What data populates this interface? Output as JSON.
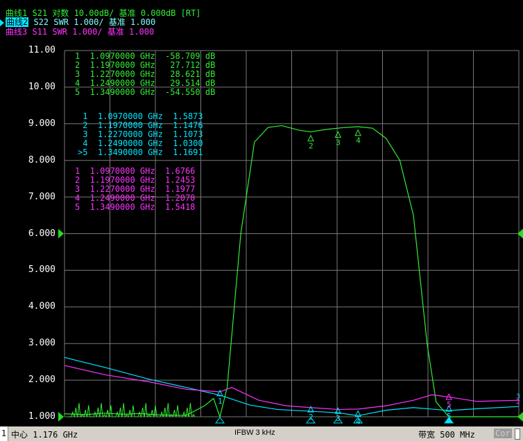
{
  "header": {
    "trace1": {
      "label": "曲线1",
      "text": " S21 对数 10.00dB/ 基准 0.000dB [RT]"
    },
    "trace2": {
      "label": "曲线2",
      "text": " S22 SWR 1.000/ 基准 1.000"
    },
    "trace3": {
      "label": "曲线3",
      "text": " S11 SWR 1.000/ 基准 1.000"
    }
  },
  "y_axis": {
    "labels": [
      "11.00",
      "10.00",
      "9.000",
      "8.000",
      "7.000",
      "6.000",
      "5.000",
      "4.000",
      "3.000",
      "2.000",
      "1.000"
    ]
  },
  "marker_tables": {
    "s21": [
      {
        "id": "1",
        "freq": "1.0970000 GHz",
        "value": "-58.709 dB"
      },
      {
        "id": "2",
        "freq": "1.1970000 GHz",
        "value": " 27.712 dB"
      },
      {
        "id": "3",
        "freq": "1.2270000 GHz",
        "value": " 28.621 dB"
      },
      {
        "id": "4",
        "freq": "1.2490000 GHz",
        "value": " 29.514 dB"
      },
      {
        "id": "5",
        "freq": "1.3490000 GHz",
        "value": "-54.550 dB"
      }
    ],
    "s22": [
      {
        "id": " 1",
        "freq": "1.0970000 GHz",
        "value": "1.5873"
      },
      {
        "id": " 2",
        "freq": "1.1970000 GHz",
        "value": "1.1476"
      },
      {
        "id": " 3",
        "freq": "1.2270000 GHz",
        "value": "1.1073"
      },
      {
        "id": " 4",
        "freq": "1.2490000 GHz",
        "value": "1.0300"
      },
      {
        "id": ">5",
        "freq": "1.3490000 GHz",
        "value": "1.1691"
      }
    ],
    "s11": [
      {
        "id": "1",
        "freq": "1.0970000 GHz",
        "value": "1.6766"
      },
      {
        "id": "2",
        "freq": "1.1970000 GHz",
        "value": "1.2453"
      },
      {
        "id": "3",
        "freq": "1.2270000 GHz",
        "value": "1.1977"
      },
      {
        "id": "4",
        "freq": "1.2490000 GHz",
        "value": "1.2070"
      },
      {
        "id": "5",
        "freq": "1.3490000 GHz",
        "value": "1.5418"
      }
    ]
  },
  "markers_on_plot": {
    "s21": [
      "1",
      "2",
      "3",
      "4",
      "5"
    ],
    "s22": [
      "1",
      "2",
      "3",
      "4",
      "5"
    ],
    "s11": [
      "5"
    ],
    "right_edge_labels": [
      "3",
      "2"
    ]
  },
  "status_bar": {
    "channel": "1",
    "center": "中心 1.176 GHz",
    "ifbw": "IFBW 3 kHz",
    "span": "带宽 500 MHz",
    "cor": "Cor"
  },
  "colors": {
    "s21": "#33ee33",
    "s22": "#00e5ff",
    "s11": "#ff33ff",
    "grid": "#7a7a7a",
    "background": "#000000"
  },
  "chart_data": {
    "type": "line",
    "x_range_ghz": [
      0.926,
      1.426
    ],
    "ylim": [
      1.0,
      11.0
    ],
    "series": [
      {
        "name": "S21",
        "unit": "dB (10 dB/div, ref 0 dB)",
        "x": [
          0.926,
          0.95,
          0.97,
          0.99,
          1.01,
          1.03,
          1.06,
          1.08,
          1.09,
          1.097,
          1.105,
          1.12,
          1.135,
          1.15,
          1.165,
          1.185,
          1.197,
          1.215,
          1.235,
          1.249,
          1.265,
          1.28,
          1.295,
          1.31,
          1.325,
          1.335,
          1.349,
          1.36,
          1.38,
          1.4,
          1.426
        ],
        "y": [
          1.08,
          1.06,
          1.1,
          1.07,
          1.09,
          1.05,
          1.04,
          1.3,
          1.5,
          1.0,
          1.8,
          6.0,
          8.5,
          8.9,
          8.95,
          8.82,
          8.78,
          8.85,
          8.9,
          8.92,
          8.88,
          8.6,
          8.0,
          6.5,
          3.0,
          1.4,
          1.0,
          1.0,
          1.0,
          1.0,
          1.0
        ]
      },
      {
        "name": "S22",
        "unit": "SWR",
        "x": [
          0.926,
          0.97,
          1.02,
          1.06,
          1.097,
          1.13,
          1.16,
          1.197,
          1.227,
          1.249,
          1.28,
          1.31,
          1.349,
          1.38,
          1.426
        ],
        "y": [
          2.62,
          2.35,
          2.02,
          1.8,
          1.59,
          1.32,
          1.2,
          1.15,
          1.11,
          1.03,
          1.18,
          1.25,
          1.17,
          1.22,
          1.28
        ]
      },
      {
        "name": "S11",
        "unit": "SWR",
        "x": [
          0.926,
          0.97,
          1.02,
          1.06,
          1.097,
          1.11,
          1.14,
          1.17,
          1.197,
          1.227,
          1.249,
          1.28,
          1.31,
          1.33,
          1.349,
          1.38,
          1.426
        ],
        "y": [
          2.4,
          2.15,
          1.95,
          1.75,
          1.68,
          1.8,
          1.45,
          1.3,
          1.25,
          1.2,
          1.21,
          1.3,
          1.45,
          1.6,
          1.54,
          1.42,
          1.45
        ]
      }
    ]
  }
}
